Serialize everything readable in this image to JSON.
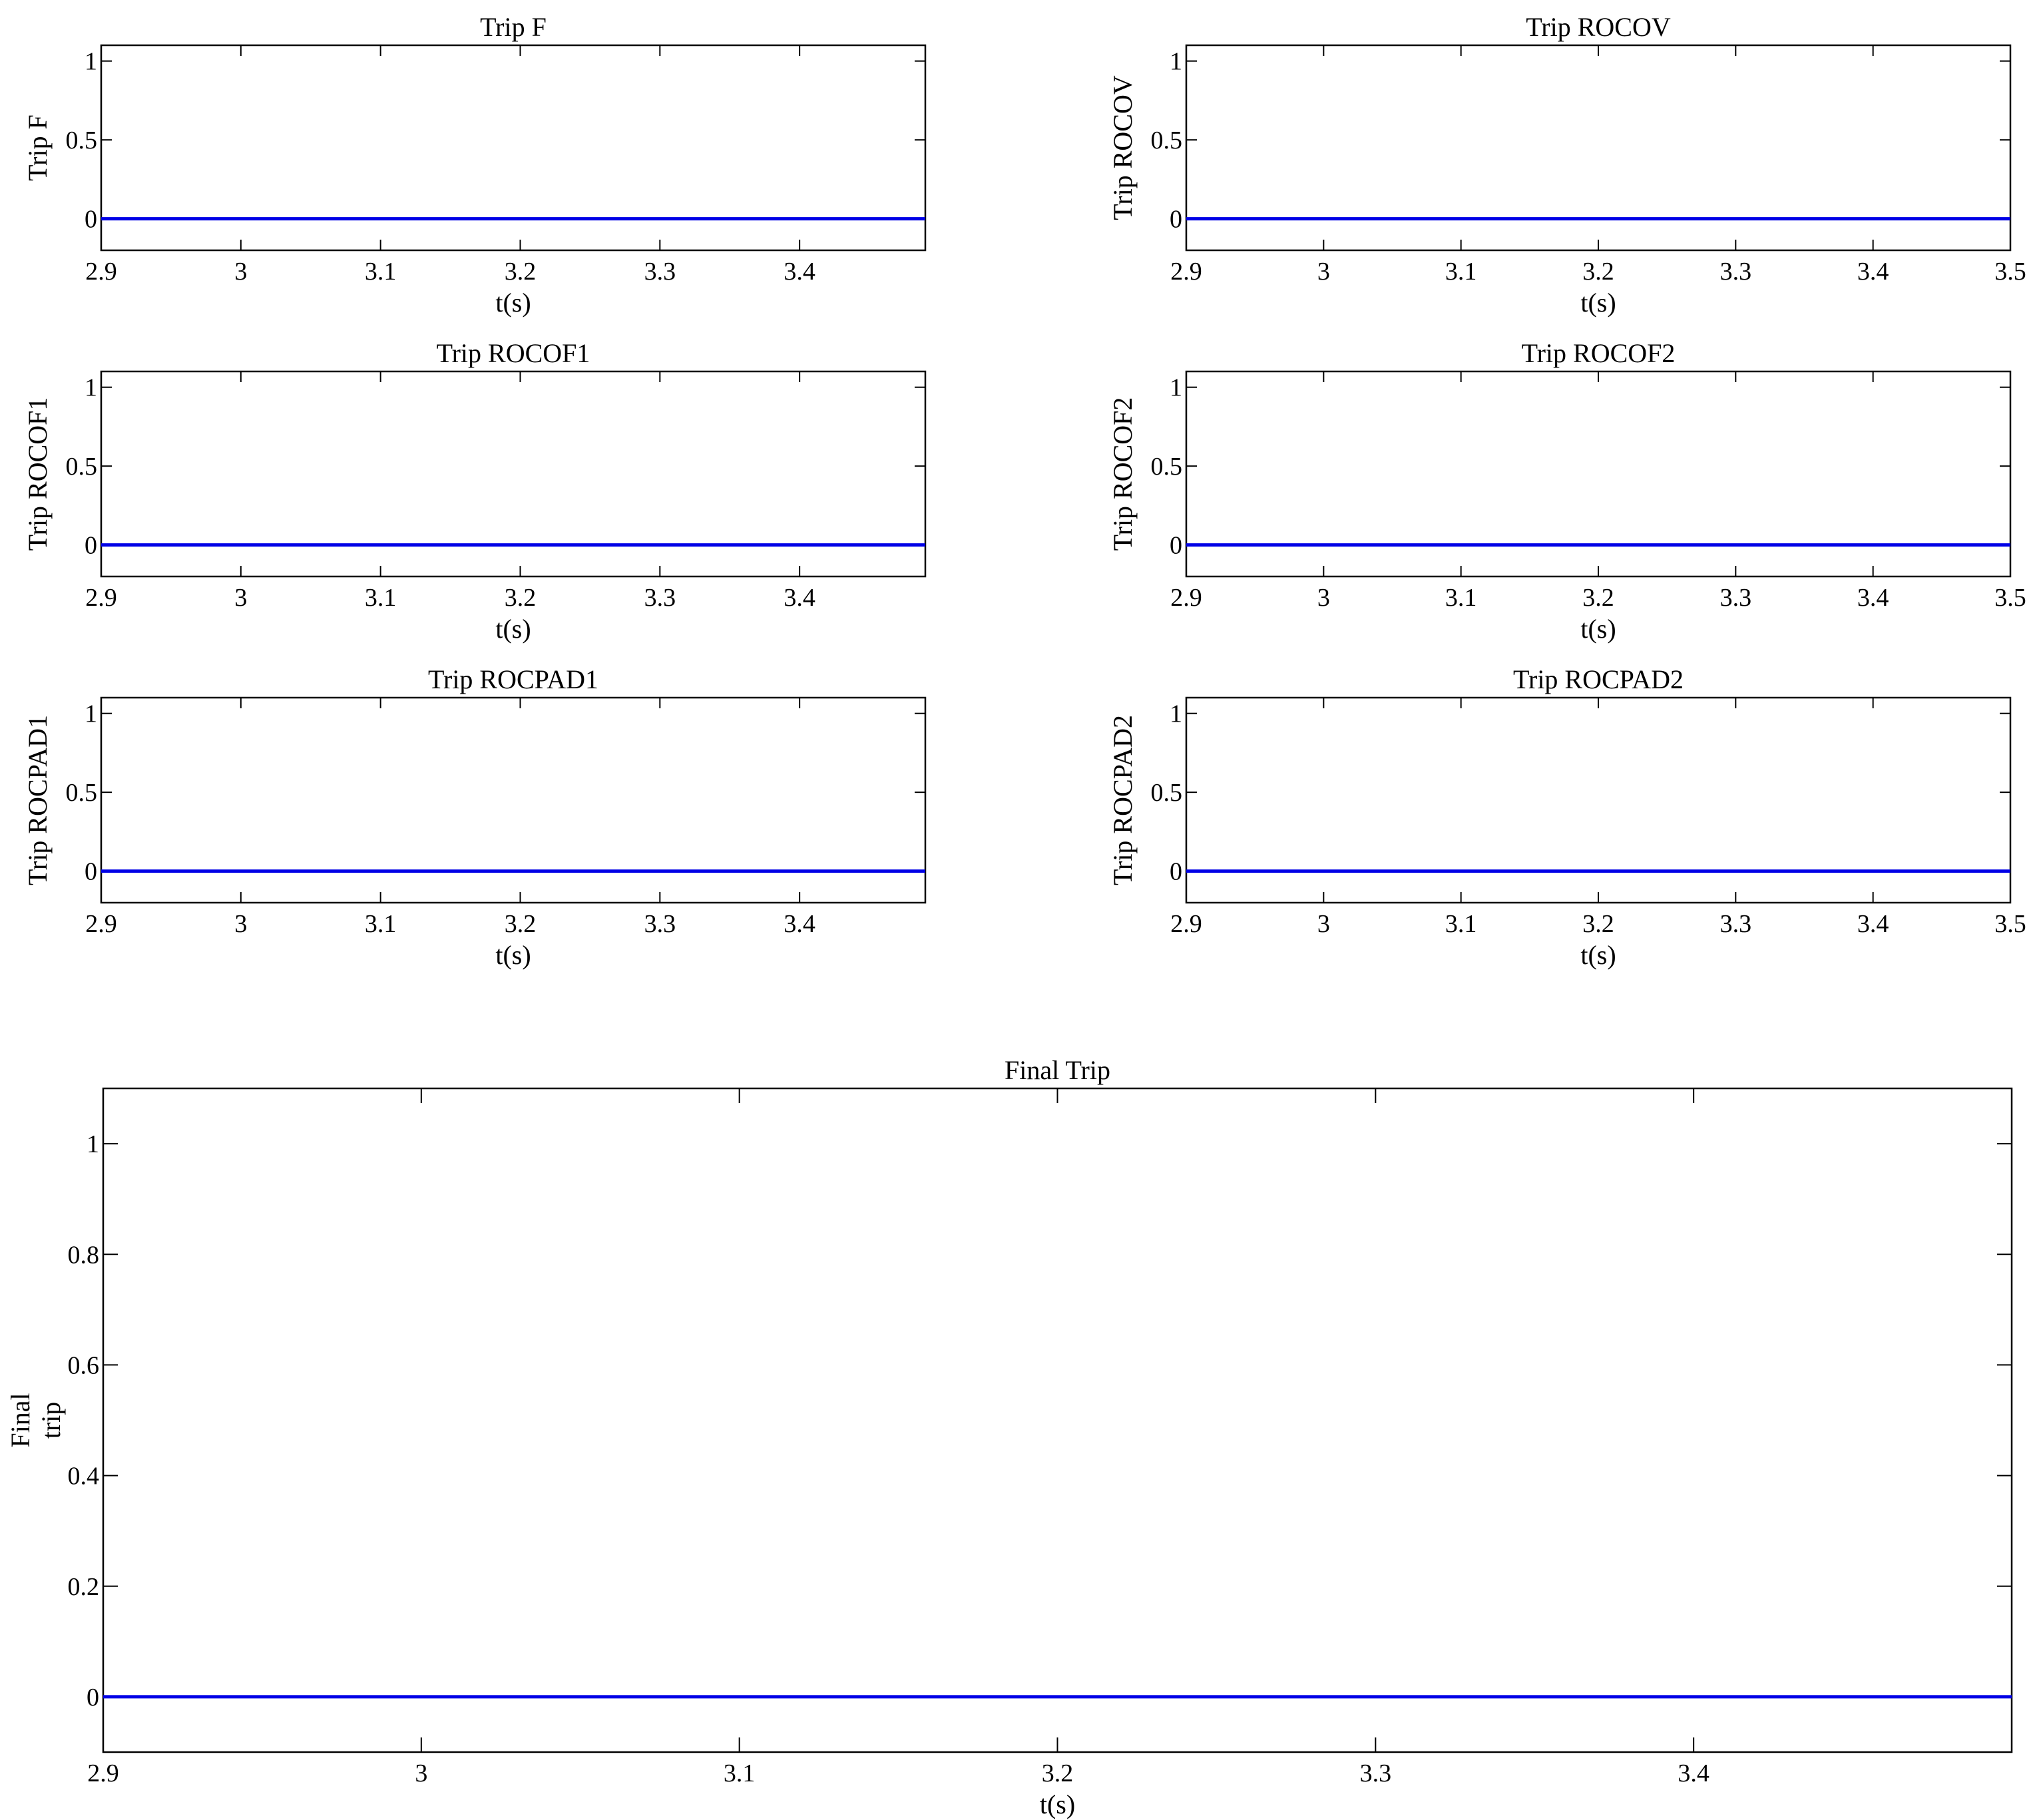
{
  "colors": {
    "series": "#0000e6",
    "axes": "#000000",
    "background": "#ffffff"
  },
  "chart_data": [
    {
      "type": "line",
      "title": "Trip F",
      "xlabel": "t(s)",
      "ylabel": [
        "Trip F"
      ],
      "xlim": [
        2.9,
        3.49
      ],
      "ylim": [
        -0.2,
        1.1
      ],
      "xticks": [
        2.9,
        3.0,
        3.1,
        3.2,
        3.3,
        3.4
      ],
      "xtick_labels": [
        "2.9",
        "3",
        "3.1",
        "3.2",
        "3.3",
        "3.4"
      ],
      "yticks": [
        0,
        0.5,
        1
      ],
      "ytick_labels": [
        "0",
        "0.5",
        "1"
      ],
      "grid": false,
      "series": [
        {
          "x": [
            2.9,
            3.49
          ],
          "y": [
            0,
            0
          ]
        }
      ]
    },
    {
      "type": "line",
      "title": "Trip ROCOV",
      "xlabel": "t(s)",
      "ylabel": [
        "Trip ROCOV"
      ],
      "xlim": [
        2.9,
        3.5
      ],
      "ylim": [
        -0.2,
        1.1
      ],
      "xticks": [
        2.9,
        3.0,
        3.1,
        3.2,
        3.3,
        3.4,
        3.5
      ],
      "xtick_labels": [
        "2.9",
        "3",
        "3.1",
        "3.2",
        "3.3",
        "3.4",
        "3.5"
      ],
      "yticks": [
        0,
        0.5,
        1
      ],
      "ytick_labels": [
        "0",
        "0.5",
        "1"
      ],
      "grid": false,
      "series": [
        {
          "x": [
            2.9,
            3.5
          ],
          "y": [
            0,
            0
          ]
        }
      ]
    },
    {
      "type": "line",
      "title": "Trip ROCOF1",
      "xlabel": "t(s)",
      "ylabel": [
        "Trip ROCOF1"
      ],
      "xlim": [
        2.9,
        3.49
      ],
      "ylim": [
        -0.2,
        1.1
      ],
      "xticks": [
        2.9,
        3.0,
        3.1,
        3.2,
        3.3,
        3.4
      ],
      "xtick_labels": [
        "2.9",
        "3",
        "3.1",
        "3.2",
        "3.3",
        "3.4"
      ],
      "yticks": [
        0,
        0.5,
        1
      ],
      "ytick_labels": [
        "0",
        "0.5",
        "1"
      ],
      "grid": false,
      "series": [
        {
          "x": [
            2.9,
            3.49
          ],
          "y": [
            0,
            0
          ]
        }
      ]
    },
    {
      "type": "line",
      "title": "Trip ROCOF2",
      "xlabel": "t(s)",
      "ylabel": [
        "Trip ROCOF2"
      ],
      "xlim": [
        2.9,
        3.5
      ],
      "ylim": [
        -0.2,
        1.1
      ],
      "xticks": [
        2.9,
        3.0,
        3.1,
        3.2,
        3.3,
        3.4,
        3.5
      ],
      "xtick_labels": [
        "2.9",
        "3",
        "3.1",
        "3.2",
        "3.3",
        "3.4",
        "3.5"
      ],
      "yticks": [
        0,
        0.5,
        1
      ],
      "ytick_labels": [
        "0",
        "0.5",
        "1"
      ],
      "grid": false,
      "series": [
        {
          "x": [
            2.9,
            3.5
          ],
          "y": [
            0,
            0
          ]
        }
      ]
    },
    {
      "type": "line",
      "title": "Trip ROCPAD1",
      "xlabel": "t(s)",
      "ylabel": [
        "Trip ROCPAD1"
      ],
      "xlim": [
        2.9,
        3.49
      ],
      "ylim": [
        -0.2,
        1.1
      ],
      "xticks": [
        2.9,
        3.0,
        3.1,
        3.2,
        3.3,
        3.4
      ],
      "xtick_labels": [
        "2.9",
        "3",
        "3.1",
        "3.2",
        "3.3",
        "3.4"
      ],
      "yticks": [
        0,
        0.5,
        1
      ],
      "ytick_labels": [
        "0",
        "0.5",
        "1"
      ],
      "grid": false,
      "series": [
        {
          "x": [
            2.9,
            3.49
          ],
          "y": [
            0,
            0
          ]
        }
      ]
    },
    {
      "type": "line",
      "title": "Trip ROCPAD2",
      "xlabel": "t(s)",
      "ylabel": [
        "Trip ROCPAD2"
      ],
      "xlim": [
        2.9,
        3.5
      ],
      "ylim": [
        -0.2,
        1.1
      ],
      "xticks": [
        2.9,
        3.0,
        3.1,
        3.2,
        3.3,
        3.4,
        3.5
      ],
      "xtick_labels": [
        "2.9",
        "3",
        "3.1",
        "3.2",
        "3.3",
        "3.4",
        "3.5"
      ],
      "yticks": [
        0,
        0.5,
        1
      ],
      "ytick_labels": [
        "0",
        "0.5",
        "1"
      ],
      "grid": false,
      "series": [
        {
          "x": [
            2.9,
            3.5
          ],
          "y": [
            0,
            0
          ]
        }
      ]
    },
    {
      "type": "line",
      "title": "Final Trip",
      "xlabel": "t(s)",
      "ylabel": [
        "Final",
        "trip"
      ],
      "xlim": [
        2.9,
        3.5
      ],
      "ylim": [
        -0.1,
        1.1
      ],
      "xticks": [
        2.9,
        3.0,
        3.1,
        3.2,
        3.3,
        3.4
      ],
      "xtick_labels": [
        "2.9",
        "3",
        "3.1",
        "3.2",
        "3.3",
        "3.4"
      ],
      "yticks": [
        0,
        0.2,
        0.4,
        0.6,
        0.8,
        1
      ],
      "ytick_labels": [
        "0",
        "0.2",
        "0.4",
        "0.6",
        "0.8",
        "1"
      ],
      "grid": false,
      "series": [
        {
          "x": [
            2.9,
            3.5
          ],
          "y": [
            0,
            0
          ]
        }
      ]
    }
  ]
}
